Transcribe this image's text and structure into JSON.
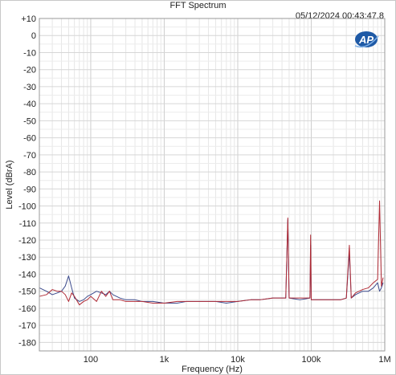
{
  "chart_data": {
    "type": "line",
    "title": "FFT Spectrum",
    "timestamp": "05/12/2024 00:43:47.8",
    "logo": "AP",
    "xlabel": "Frequency (Hz)",
    "ylabel": "Level (dBrA)",
    "x_scale": "log",
    "xlim": [
      20,
      1000000
    ],
    "ylim": [
      -185,
      10
    ],
    "x_ticks": [
      {
        "value": 100,
        "label": "100"
      },
      {
        "value": 1000,
        "label": "1k"
      },
      {
        "value": 10000,
        "label": "10k"
      },
      {
        "value": 100000,
        "label": "100k"
      },
      {
        "value": 1000000,
        "label": "1M"
      }
    ],
    "y_ticks": [
      {
        "value": 10,
        "label": "+10"
      },
      {
        "value": 0,
        "label": "0"
      },
      {
        "value": -10,
        "label": "-10"
      },
      {
        "value": -20,
        "label": "-20"
      },
      {
        "value": -30,
        "label": "-30"
      },
      {
        "value": -40,
        "label": "-40"
      },
      {
        "value": -50,
        "label": "-50"
      },
      {
        "value": -60,
        "label": "-60"
      },
      {
        "value": -70,
        "label": "-70"
      },
      {
        "value": -80,
        "label": "-80"
      },
      {
        "value": -90,
        "label": "-90"
      },
      {
        "value": -100,
        "label": "-100"
      },
      {
        "value": -110,
        "label": "-110"
      },
      {
        "value": -120,
        "label": "-120"
      },
      {
        "value": -130,
        "label": "-130"
      },
      {
        "value": -140,
        "label": "-140"
      },
      {
        "value": -150,
        "label": "-150"
      },
      {
        "value": -160,
        "label": "-160"
      },
      {
        "value": -170,
        "label": "-170"
      },
      {
        "value": -180,
        "label": "-180"
      }
    ],
    "grid": true,
    "series": [
      {
        "color": "#3b4a8c",
        "points": [
          [
            20,
            -148
          ],
          [
            25,
            -150
          ],
          [
            30,
            -152
          ],
          [
            35,
            -151
          ],
          [
            40,
            -150
          ],
          [
            45,
            -147
          ],
          [
            50,
            -141
          ],
          [
            55,
            -148
          ],
          [
            60,
            -154
          ],
          [
            70,
            -156
          ],
          [
            80,
            -155
          ],
          [
            90,
            -153
          ],
          [
            100,
            -152
          ],
          [
            120,
            -150
          ],
          [
            140,
            -151
          ],
          [
            160,
            -152
          ],
          [
            180,
            -150
          ],
          [
            200,
            -152
          ],
          [
            250,
            -154
          ],
          [
            300,
            -155
          ],
          [
            400,
            -155
          ],
          [
            500,
            -156
          ],
          [
            700,
            -156
          ],
          [
            1000,
            -157
          ],
          [
            1500,
            -157
          ],
          [
            2000,
            -156
          ],
          [
            3000,
            -156
          ],
          [
            5000,
            -156
          ],
          [
            7000,
            -157
          ],
          [
            10000,
            -156
          ],
          [
            15000,
            -155
          ],
          [
            20000,
            -155
          ],
          [
            30000,
            -154
          ],
          [
            45000,
            -154
          ],
          [
            48000,
            -108
          ],
          [
            50000,
            -154
          ],
          [
            70000,
            -155
          ],
          [
            96000,
            -154
          ],
          [
            98000,
            -123
          ],
          [
            100000,
            -155
          ],
          [
            150000,
            -155
          ],
          [
            200000,
            -155
          ],
          [
            250000,
            -155
          ],
          [
            300000,
            -154
          ],
          [
            330000,
            -127
          ],
          [
            350000,
            -154
          ],
          [
            400000,
            -152
          ],
          [
            500000,
            -150
          ],
          [
            600000,
            -150
          ],
          [
            700000,
            -148
          ],
          [
            800000,
            -145
          ],
          [
            850000,
            -150
          ],
          [
            900000,
            -148
          ],
          [
            950000,
            -145
          ]
        ]
      },
      {
        "color": "#b02a35",
        "points": [
          [
            20,
            -153
          ],
          [
            25,
            -152
          ],
          [
            30,
            -149
          ],
          [
            35,
            -150
          ],
          [
            40,
            -150
          ],
          [
            45,
            -152
          ],
          [
            50,
            -156
          ],
          [
            55,
            -151
          ],
          [
            60,
            -153
          ],
          [
            70,
            -158
          ],
          [
            80,
            -156
          ],
          [
            90,
            -155
          ],
          [
            100,
            -153
          ],
          [
            120,
            -156
          ],
          [
            140,
            -150
          ],
          [
            160,
            -153
          ],
          [
            180,
            -150
          ],
          [
            200,
            -155
          ],
          [
            250,
            -155
          ],
          [
            300,
            -156
          ],
          [
            400,
            -156
          ],
          [
            500,
            -156
          ],
          [
            700,
            -157
          ],
          [
            1000,
            -157
          ],
          [
            1500,
            -156
          ],
          [
            2000,
            -156
          ],
          [
            3000,
            -156
          ],
          [
            5000,
            -156
          ],
          [
            7000,
            -156
          ],
          [
            10000,
            -156
          ],
          [
            15000,
            -155
          ],
          [
            20000,
            -155
          ],
          [
            30000,
            -154
          ],
          [
            45000,
            -154
          ],
          [
            48000,
            -107
          ],
          [
            50000,
            -154
          ],
          [
            70000,
            -154
          ],
          [
            96000,
            -154
          ],
          [
            98000,
            -117
          ],
          [
            100000,
            -155
          ],
          [
            150000,
            -155
          ],
          [
            200000,
            -155
          ],
          [
            250000,
            -155
          ],
          [
            300000,
            -154
          ],
          [
            330000,
            -123
          ],
          [
            350000,
            -154
          ],
          [
            400000,
            -151
          ],
          [
            500000,
            -149
          ],
          [
            600000,
            -148
          ],
          [
            700000,
            -145
          ],
          [
            800000,
            -143
          ],
          [
            850000,
            -97
          ],
          [
            900000,
            -147
          ],
          [
            950000,
            -142
          ]
        ]
      }
    ]
  }
}
